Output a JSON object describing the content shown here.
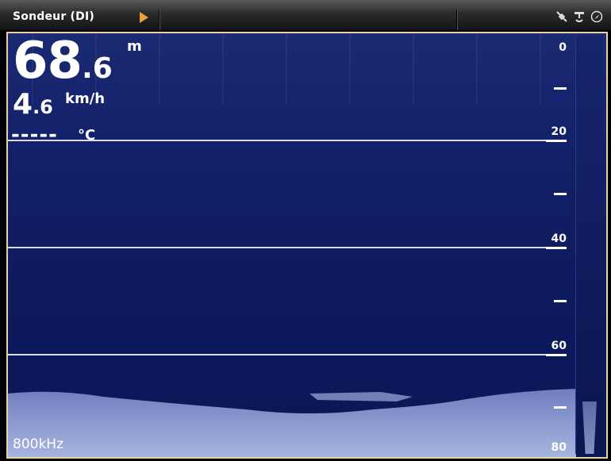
{
  "topbar": {
    "title": "Sondeur (DI)"
  },
  "readouts": {
    "depth_int": "68",
    "depth_dec": ".6",
    "depth_unit": "m",
    "speed_int": "4",
    "speed_dec": ".6",
    "speed_unit": "km/h",
    "temp_value": "-----",
    "temp_unit": "°C"
  },
  "depth_scale": [
    "0",
    "20",
    "40",
    "60",
    "80"
  ],
  "frequency": "800kHz",
  "icons": [
    "gps-satellite-icon",
    "sonar-transducer-icon",
    "compass-icon"
  ],
  "colors": {
    "accent": "#e9a23b",
    "background": "#13216a",
    "frame": "#e8d2a0"
  }
}
